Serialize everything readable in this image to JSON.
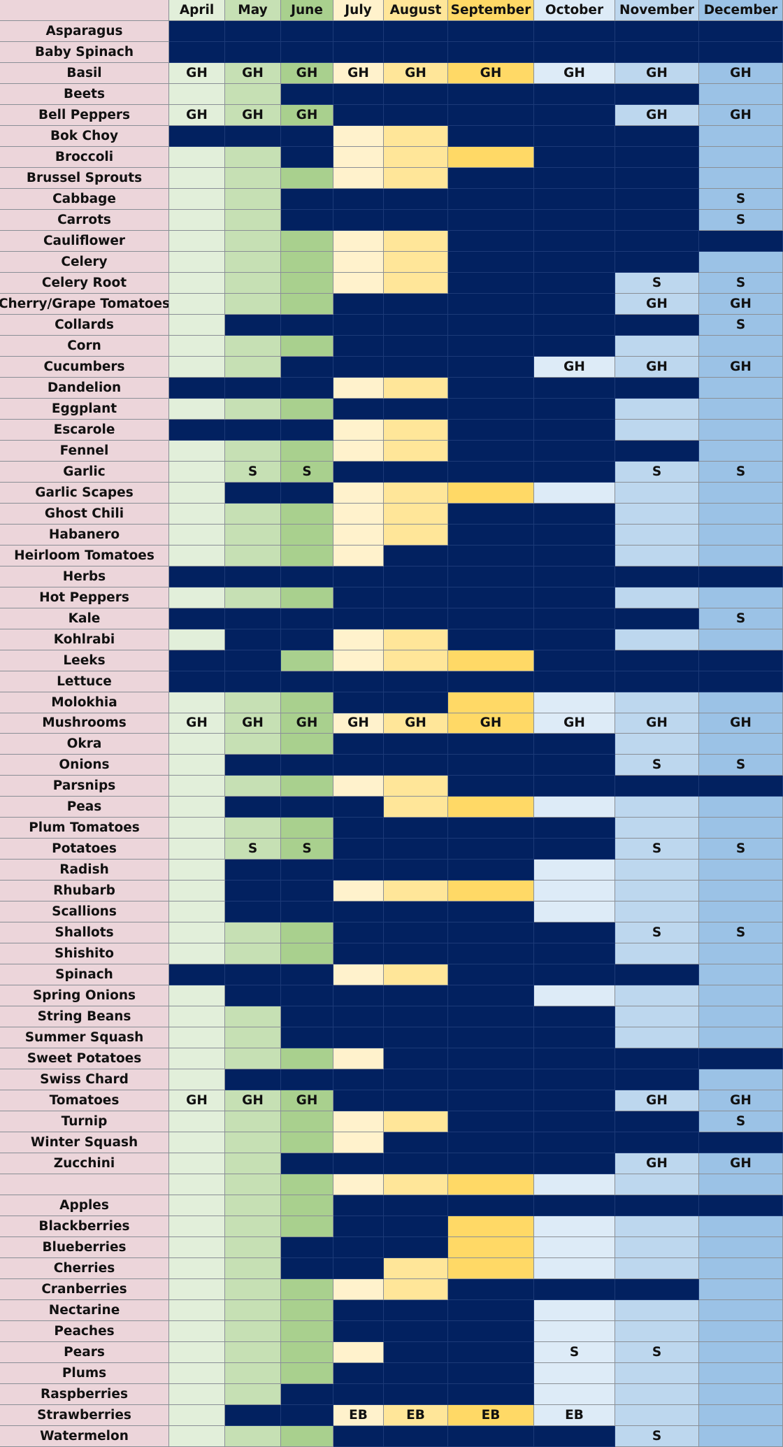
{
  "months": [
    "April",
    "May",
    "June",
    "July",
    "August",
    "September",
    "October",
    "November",
    "December"
  ],
  "colors": {
    "label_bg": "#ecd5da",
    "dark": "#022160",
    "month_light": [
      "#e2efda",
      "#c6e0b4",
      "#a9d08e",
      "#fff2cc",
      "#ffe699",
      "#ffd966",
      "#ddebf7",
      "#bdd7ee",
      "#9bc2e6"
    ],
    "header_bg": [
      "#e2efda",
      "#c6e0b4",
      "#a9d08e",
      "#fff2cc",
      "#ffe699",
      "#ffd966",
      "#ddebf7",
      "#bdd7ee",
      "#9bc2e6"
    ]
  },
  "rows": [
    {
      "name": "Asparagus",
      "avail": "DDDDDDDDD",
      "labels": []
    },
    {
      "name": "Baby Spinach",
      "avail": "DDDDDDDDD",
      "labels": []
    },
    {
      "name": "Basil",
      "avail": "LLLLLLLLL",
      "labels": [
        "GH",
        "GH",
        "GH",
        "GH",
        "GH",
        "GH",
        "GH",
        "GH",
        "GH"
      ]
    },
    {
      "name": "Beets",
      "avail": "LLDDDDDDL",
      "labels": []
    },
    {
      "name": "Bell Peppers",
      "avail": "LLLDDDDLL",
      "labels": [
        "GH",
        "GH",
        "GH",
        "",
        "",
        "",
        "",
        "GH",
        "GH"
      ]
    },
    {
      "name": "Bok Choy",
      "avail": "DDDLLDDDL",
      "labels": []
    },
    {
      "name": "Broccoli",
      "avail": "LLDLLLDDL",
      "labels": []
    },
    {
      "name": "Brussel Sprouts",
      "avail": "LLLLLDDDL",
      "labels": []
    },
    {
      "name": "Cabbage",
      "avail": "LLDDDDDDL",
      "labels": [
        "",
        "",
        "",
        "",
        "",
        "",
        "",
        "",
        "S"
      ]
    },
    {
      "name": "Carrots",
      "avail": "LLDDDDDDL",
      "labels": [
        "",
        "",
        "",
        "",
        "",
        "",
        "",
        "",
        "S"
      ]
    },
    {
      "name": "Cauliflower",
      "avail": "LLLLLDDDD",
      "labels": []
    },
    {
      "name": "Celery",
      "avail": "LLLLLDDDL",
      "labels": []
    },
    {
      "name": "Celery Root",
      "avail": "LLLLLDDLL",
      "labels": [
        "",
        "",
        "",
        "",
        "",
        "",
        "",
        "S",
        "S"
      ]
    },
    {
      "name": "Cherry/Grape Tomatoes",
      "avail": "LLLDDDDLL",
      "labels": [
        "",
        "",
        "",
        "",
        "",
        "",
        "",
        "GH",
        "GH"
      ]
    },
    {
      "name": "Collards",
      "avail": "LDDDDDDDL",
      "labels": [
        "",
        "",
        "",
        "",
        "",
        "",
        "",
        "",
        "S"
      ]
    },
    {
      "name": "Corn",
      "avail": "LLLDDDDLL",
      "labels": []
    },
    {
      "name": "Cucumbers",
      "avail": "LLDDDDLLL",
      "labels": [
        "",
        "",
        "",
        "",
        "",
        "",
        "GH",
        "GH",
        "GH"
      ]
    },
    {
      "name": "Dandelion",
      "avail": "DDDLLDDDL",
      "labels": []
    },
    {
      "name": "Eggplant",
      "avail": "LLLDDDDLL",
      "labels": []
    },
    {
      "name": "Escarole",
      "avail": "DDDLLDDLL",
      "labels": []
    },
    {
      "name": "Fennel",
      "avail": "LLLLLDDDL",
      "labels": []
    },
    {
      "name": "Garlic",
      "avail": "LLLDDDDLL",
      "labels": [
        "",
        "S",
        "S",
        "",
        "",
        "",
        "",
        "S",
        "S"
      ]
    },
    {
      "name": "Garlic Scapes",
      "avail": "LDDLLLLLL",
      "labels": []
    },
    {
      "name": "Ghost Chili",
      "avail": "LLLLLDDLL",
      "labels": []
    },
    {
      "name": "Habanero",
      "avail": "LLLLLDDLL",
      "labels": []
    },
    {
      "name": "Heirloom Tomatoes",
      "avail": "LLLLDDDLL",
      "labels": []
    },
    {
      "name": "Herbs",
      "avail": "DDDDDDDDD",
      "labels": []
    },
    {
      "name": "Hot Peppers",
      "avail": "LLLDDDDLL",
      "labels": []
    },
    {
      "name": "Kale",
      "avail": "DDDDDDDDL",
      "labels": [
        "",
        "",
        "",
        "",
        "",
        "",
        "",
        "",
        "S"
      ]
    },
    {
      "name": "Kohlrabi",
      "avail": "LDDLLDDLL",
      "labels": []
    },
    {
      "name": "Leeks",
      "avail": "DDLLLLDDD",
      "labels": []
    },
    {
      "name": "Lettuce",
      "avail": "DDDDDDDDD",
      "labels": []
    },
    {
      "name": "Molokhia",
      "avail": "LLLDDLLLL",
      "labels": []
    },
    {
      "name": "Mushrooms",
      "avail": "LLLLLLLLL",
      "labels": [
        "GH",
        "GH",
        "GH",
        "GH",
        "GH",
        "GH",
        "GH",
        "GH",
        "GH"
      ]
    },
    {
      "name": "Okra",
      "avail": "LLLDDDDLL",
      "labels": []
    },
    {
      "name": "Onions",
      "avail": "LDDDDDDLL",
      "labels": [
        "",
        "",
        "",
        "",
        "",
        "",
        "",
        "S",
        "S"
      ]
    },
    {
      "name": "Parsnips",
      "avail": "LLLLLDDDD",
      "labels": []
    },
    {
      "name": "Peas",
      "avail": "LDDDLLLLL",
      "labels": []
    },
    {
      "name": "Plum Tomatoes",
      "avail": "LLLDDDDLL",
      "labels": []
    },
    {
      "name": "Potatoes",
      "avail": "LLLDDDDLL",
      "labels": [
        "",
        "S",
        "S",
        "",
        "",
        "",
        "",
        "S",
        "S"
      ]
    },
    {
      "name": "Radish",
      "avail": "LDDDDDLLL",
      "labels": []
    },
    {
      "name": "Rhubarb",
      "avail": "LDDLLLLLL",
      "labels": []
    },
    {
      "name": "Scallions",
      "avail": "LDDDDDLLL",
      "labels": []
    },
    {
      "name": "Shallots",
      "avail": "LLLDDDDLL",
      "labels": [
        "",
        "",
        "",
        "",
        "",
        "",
        "",
        "S",
        "S"
      ]
    },
    {
      "name": "Shishito",
      "avail": "LLLDDDDLL",
      "labels": []
    },
    {
      "name": "Spinach",
      "avail": "DDDLLDDDL",
      "labels": []
    },
    {
      "name": "Spring Onions",
      "avail": "LDDDDDLLL",
      "labels": []
    },
    {
      "name": "String Beans",
      "avail": "LLDDDDDLL",
      "labels": []
    },
    {
      "name": "Summer Squash",
      "avail": "LLDDDDDLL",
      "labels": []
    },
    {
      "name": "Sweet Potatoes",
      "avail": "LLLLDDDDD",
      "labels": []
    },
    {
      "name": "Swiss Chard",
      "avail": "LDDDDDDDL",
      "labels": []
    },
    {
      "name": "Tomatoes",
      "avail": "LLLDDDDLL",
      "labels": [
        "GH",
        "GH",
        "GH",
        "",
        "",
        "",
        "",
        "GH",
        "GH"
      ]
    },
    {
      "name": "Turnip",
      "avail": "LLLLLDDDL",
      "labels": [
        "",
        "",
        "",
        "",
        "",
        "",
        "",
        "",
        "S"
      ]
    },
    {
      "name": "Winter Squash",
      "avail": "LLLLDDDDD",
      "labels": []
    },
    {
      "name": "Zucchini",
      "avail": "LLDDDDDLL",
      "labels": [
        "",
        "",
        "",
        "",
        "",
        "",
        "",
        "GH",
        "GH"
      ]
    },
    {
      "name": "",
      "avail": "LLLLLLLLL",
      "labels": []
    },
    {
      "name": "Apples",
      "avail": "LLLDDDDDD",
      "labels": []
    },
    {
      "name": "Blackberries",
      "avail": "LLLDDLLLL",
      "labels": []
    },
    {
      "name": "Blueberries",
      "avail": "LLDDDLLLL",
      "labels": []
    },
    {
      "name": "Cherries",
      "avail": "LLDDLLLLL",
      "labels": []
    },
    {
      "name": "Cranberries",
      "avail": "LLLLLDDDL",
      "labels": []
    },
    {
      "name": "Nectarine",
      "avail": "LLLDDDLLL",
      "labels": []
    },
    {
      "name": "Peaches",
      "avail": "LLLDDDLLL",
      "labels": []
    },
    {
      "name": "Pears",
      "avail": "LLLLDDLLL",
      "labels": [
        "",
        "",
        "",
        "",
        "",
        "",
        "S",
        "S",
        ""
      ]
    },
    {
      "name": "Plums",
      "avail": "LLLDDDLLL",
      "labels": []
    },
    {
      "name": "Raspberries",
      "avail": "LLDDDDLLL",
      "labels": []
    },
    {
      "name": "Strawberries",
      "avail": "LDDLLLLLL",
      "labels": [
        "",
        "",
        "",
        "EB",
        "EB",
        "EB",
        "EB",
        "",
        ""
      ]
    },
    {
      "name": "Watermelon",
      "avail": "LLLDDDDLL",
      "labels": [
        "",
        "",
        "",
        "",
        "",
        "",
        "",
        "S",
        ""
      ]
    }
  ]
}
